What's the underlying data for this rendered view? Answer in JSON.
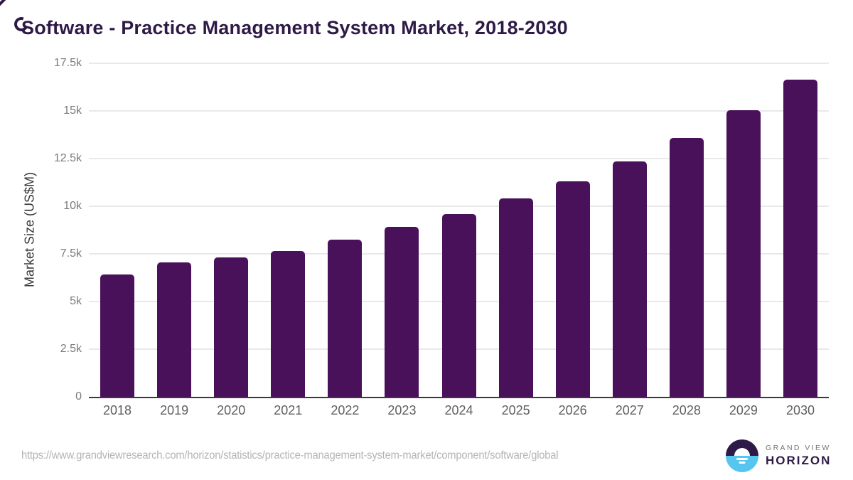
{
  "title": "Software - Practice Management System Market, 2018-2030",
  "chart_data": {
    "type": "bar",
    "title": "Software - Practice Management System Market, 2018-2030",
    "categories": [
      "2018",
      "2019",
      "2020",
      "2021",
      "2022",
      "2023",
      "2024",
      "2025",
      "2026",
      "2027",
      "2028",
      "2029",
      "2030"
    ],
    "values": [
      6400,
      7050,
      7300,
      7650,
      8250,
      8900,
      9600,
      10400,
      11300,
      12350,
      13600,
      15050,
      16650
    ],
    "series_name": "Market Size",
    "xlabel": "",
    "ylabel": "Market Size (US$M)",
    "ylim": [
      0,
      17500
    ],
    "ytick_values": [
      0,
      2500,
      5000,
      7500,
      10000,
      12500,
      15000,
      17500
    ],
    "ytick_labels": [
      "0",
      "2.5k",
      "5k",
      "7.5k",
      "10k",
      "12.5k",
      "15k",
      "17.5k"
    ],
    "grid": "horizontal",
    "legend": "none",
    "bar_color": "#4a115b"
  },
  "footer": {
    "source_url": "https://www.grandviewresearch.com/horizon/statistics/practice-management-system-market/component/software/global",
    "logo": {
      "line1": "GRAND VIEW",
      "line2": "HORIZON"
    }
  },
  "colors": {
    "bar": "#4a115b",
    "title_text": "#2e1a47",
    "gridline": "#e9e9e9",
    "axis_line": "#3a3a3a",
    "ytick_text": "#7b7b7b",
    "xtick_text": "#5f5f5f",
    "url_text": "#b4b4b4",
    "logo_blue": "#56c5f0",
    "logo_dark": "#2e1a47"
  }
}
